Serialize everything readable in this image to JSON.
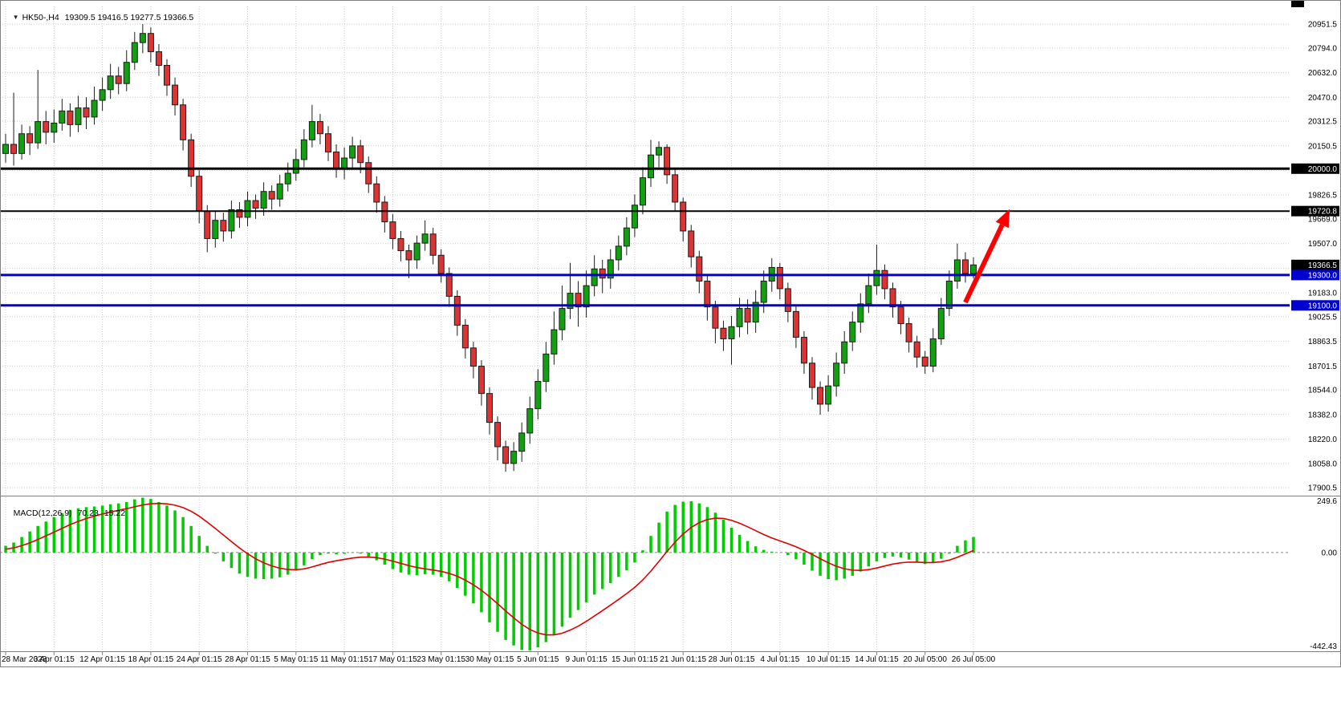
{
  "header": {
    "marker_icon": "▼",
    "symbol_label": "HK50-,H4",
    "ohlc": "19309.5 19416.5 19277.5 19366.5"
  },
  "indicator": {
    "name": "MACD(12,26,9)",
    "main_value": "70.23",
    "signal_value": "15.22"
  },
  "colors": {
    "background": "#ffffff",
    "grid": "#c9c9c9",
    "bull": "#10a010",
    "bear": "#dd3333",
    "candle_outline": "#1c1c1c",
    "macd_histogram": "#00cc00",
    "macd_signal": "#e00000",
    "line_black": "#000000",
    "line_blue": "#0000d0",
    "arrow": "#ff0000",
    "text": "#000000",
    "tag_text": "#ffffff",
    "separator": "#808080"
  },
  "chart_data": {
    "type": "candlestick",
    "symbol": "HK50-",
    "timeframe": "H4",
    "title": "HK50-,H4",
    "current_bar": {
      "open": 19309.5,
      "high": 19416.5,
      "low": 19277.5,
      "close": 19366.5
    },
    "scale": {
      "price_min": 17853,
      "price_max": 21068
    },
    "grid_prices": [
      20951.5,
      20794.0,
      20632.0,
      20470.0,
      20312.5,
      20150.5,
      19988.5,
      19826.5,
      19669.0,
      19507.0,
      19345.0,
      19183.0,
      19025.5,
      18863.5,
      18701.5,
      18544.0,
      18382.0,
      18220.0,
      18058.0,
      17900.5
    ],
    "price_axis_labels": [
      20951.5,
      20794.0,
      20632.0,
      20470.0,
      20312.5,
      20150.5,
      19826.5,
      19669.0,
      19507.0,
      19183.0,
      19025.5,
      18863.5,
      18701.5,
      18544.0,
      18382.0,
      18220.0,
      18058.0,
      17900.5
    ],
    "labels_every": 6,
    "time_labels": [
      "28 Mar 2023",
      "3 Apr 01:15",
      "12 Apr 01:15",
      "18 Apr 01:15",
      "24 Apr 01:15",
      "28 Apr 01:15",
      "5 May 01:15",
      "11 May 01:15",
      "17 May 01:15",
      "23 May 01:15",
      "30 May 01:15",
      "5 Jun 01:15",
      "9 Jun 01:15",
      "15 Jun 01:15",
      "21 Jun 01:15",
      "28 Jun 01:15",
      "4 Jul 01:15",
      "10 Jul 01:15",
      "14 Jul 01:15",
      "20 Jul 05:00",
      "26 Jul 05:00"
    ],
    "hlines": [
      {
        "price": 20000.0,
        "color": "#000000",
        "width": 3,
        "name": "resistance-line-20000"
      },
      {
        "price": 19720.8,
        "color": "#000000",
        "width": 2,
        "name": "resistance-line-19720"
      },
      {
        "price": 19300.0,
        "color": "#0000d0",
        "width": 3,
        "name": "support-line-19300"
      },
      {
        "price": 19100.0,
        "color": "#0000d0",
        "width": 3,
        "name": "support-line-19100"
      }
    ],
    "price_tags": [
      {
        "price": 20000.0,
        "text": "20000.0",
        "bg": "#000000"
      },
      {
        "price": 19720.8,
        "text": "19720.8",
        "bg": "#000000"
      },
      {
        "price": 19366.5,
        "text": "19366.5",
        "bg": "#000000"
      },
      {
        "price": 19300.0,
        "text": "19300.0",
        "bg": "#0000d0"
      },
      {
        "price": 19100.0,
        "text": "19100.0",
        "bg": "#0000d0"
      }
    ],
    "arrow": {
      "from_bar": 119,
      "from_price": 19120,
      "to_bar": 124.5,
      "to_price": 19735,
      "color": "#ff0000",
      "width": 6
    },
    "candles": [
      [
        20100,
        20230,
        20040,
        20160
      ],
      [
        20160,
        20500,
        20020,
        20100
      ],
      [
        20100,
        20290,
        20060,
        20230
      ],
      [
        20230,
        20280,
        20090,
        20170
      ],
      [
        20170,
        20650,
        20130,
        20310
      ],
      [
        20310,
        20380,
        20160,
        20240
      ],
      [
        20240,
        20390,
        20170,
        20300
      ],
      [
        20300,
        20460,
        20250,
        20380
      ],
      [
        20380,
        20430,
        20210,
        20290
      ],
      [
        20290,
        20480,
        20240,
        20400
      ],
      [
        20400,
        20470,
        20260,
        20340
      ],
      [
        20340,
        20540,
        20290,
        20450
      ],
      [
        20450,
        20600,
        20380,
        20520
      ],
      [
        20520,
        20690,
        20460,
        20610
      ],
      [
        20610,
        20670,
        20490,
        20560
      ],
      [
        20560,
        20780,
        20510,
        20700
      ],
      [
        20700,
        20900,
        20650,
        20830
      ],
      [
        20830,
        20951.5,
        20760,
        20890
      ],
      [
        20890,
        20930,
        20700,
        20770
      ],
      [
        20770,
        20820,
        20610,
        20680
      ],
      [
        20680,
        20720,
        20480,
        20550
      ],
      [
        20550,
        20600,
        20350,
        20420
      ],
      [
        20420,
        20460,
        20120,
        20190
      ],
      [
        20190,
        20230,
        19880,
        19950
      ],
      [
        19950,
        19990,
        19640,
        19720
      ],
      [
        19720,
        19760,
        19450,
        19540
      ],
      [
        19540,
        19720,
        19480,
        19660
      ],
      [
        19660,
        19710,
        19520,
        19590
      ],
      [
        19590,
        19790,
        19540,
        19730
      ],
      [
        19730,
        19780,
        19610,
        19680
      ],
      [
        19680,
        19850,
        19620,
        19790
      ],
      [
        19790,
        19830,
        19670,
        19740
      ],
      [
        19740,
        19910,
        19690,
        19850
      ],
      [
        19850,
        19890,
        19730,
        19800
      ],
      [
        19800,
        19960,
        19750,
        19900
      ],
      [
        19900,
        20040,
        19850,
        19970
      ],
      [
        19970,
        20130,
        19920,
        20060
      ],
      [
        20060,
        20260,
        20010,
        20190
      ],
      [
        20190,
        20420,
        20140,
        20310
      ],
      [
        20310,
        20360,
        20160,
        20230
      ],
      [
        20230,
        20280,
        20050,
        20110
      ],
      [
        20110,
        20160,
        19940,
        20000
      ],
      [
        20000,
        20140,
        19930,
        20070
      ],
      [
        20070,
        20210,
        20000,
        20150
      ],
      [
        20150,
        20190,
        19970,
        20040
      ],
      [
        20040,
        20080,
        19840,
        19900
      ],
      [
        19900,
        19950,
        19710,
        19780
      ],
      [
        19780,
        19820,
        19580,
        19650
      ],
      [
        19650,
        19700,
        19470,
        19540
      ],
      [
        19540,
        19590,
        19390,
        19460
      ],
      [
        19460,
        19500,
        19280,
        19400
      ],
      [
        19400,
        19560,
        19340,
        19510
      ],
      [
        19510,
        19660,
        19460,
        19570
      ],
      [
        19570,
        19610,
        19370,
        19430
      ],
      [
        19430,
        19470,
        19250,
        19310
      ],
      [
        19310,
        19350,
        19090,
        19160
      ],
      [
        19160,
        19200,
        18900,
        18970
      ],
      [
        18970,
        19010,
        18750,
        18820
      ],
      [
        18820,
        18860,
        18620,
        18700
      ],
      [
        18700,
        18740,
        18440,
        18520
      ],
      [
        18520,
        18560,
        18250,
        18330
      ],
      [
        18330,
        18370,
        18080,
        18170
      ],
      [
        18170,
        18210,
        18005,
        18060
      ],
      [
        18060,
        18200,
        18010,
        18140
      ],
      [
        18140,
        18330,
        18070,
        18260
      ],
      [
        18260,
        18500,
        18190,
        18420
      ],
      [
        18420,
        18680,
        18350,
        18600
      ],
      [
        18600,
        18860,
        18530,
        18780
      ],
      [
        18780,
        19060,
        18710,
        18940
      ],
      [
        18940,
        19230,
        18870,
        19080
      ],
      [
        19080,
        19380,
        19010,
        19180
      ],
      [
        19180,
        19260,
        18960,
        19090
      ],
      [
        19090,
        19330,
        19020,
        19230
      ],
      [
        19230,
        19430,
        19160,
        19340
      ],
      [
        19340,
        19400,
        19180,
        19280
      ],
      [
        19280,
        19470,
        19210,
        19400
      ],
      [
        19400,
        19560,
        19330,
        19490
      ],
      [
        19490,
        19680,
        19430,
        19610
      ],
      [
        19610,
        19830,
        19550,
        19760
      ],
      [
        19760,
        20010,
        19700,
        19940
      ],
      [
        19940,
        20190,
        19880,
        20090
      ],
      [
        20090,
        20180,
        20010,
        20140
      ],
      [
        20140,
        20160,
        19900,
        19960
      ],
      [
        19960,
        20000,
        19720,
        19780
      ],
      [
        19780,
        19810,
        19520,
        19590
      ],
      [
        19590,
        19630,
        19350,
        19420
      ],
      [
        19420,
        19460,
        19180,
        19260
      ],
      [
        19260,
        19300,
        19000,
        19090
      ],
      [
        19090,
        19130,
        18850,
        18950
      ],
      [
        18950,
        19000,
        18800,
        18880
      ],
      [
        18880,
        19030,
        18710,
        18960
      ],
      [
        18960,
        19150,
        18890,
        19080
      ],
      [
        19080,
        19140,
        18910,
        18990
      ],
      [
        18990,
        19200,
        18920,
        19120
      ],
      [
        19120,
        19330,
        19050,
        19260
      ],
      [
        19260,
        19410,
        19190,
        19350
      ],
      [
        19350,
        19380,
        19140,
        19210
      ],
      [
        19210,
        19250,
        18990,
        19060
      ],
      [
        19060,
        19100,
        18820,
        18890
      ],
      [
        18890,
        18930,
        18650,
        18720
      ],
      [
        18720,
        18760,
        18480,
        18560
      ],
      [
        18560,
        18600,
        18380,
        18450
      ],
      [
        18450,
        18640,
        18400,
        18570
      ],
      [
        18570,
        18790,
        18500,
        18720
      ],
      [
        18720,
        18930,
        18650,
        18860
      ],
      [
        18860,
        19060,
        18800,
        18990
      ],
      [
        18990,
        19180,
        18920,
        19110
      ],
      [
        19110,
        19310,
        19050,
        19230
      ],
      [
        19230,
        19500,
        19170,
        19330
      ],
      [
        19330,
        19370,
        19140,
        19210
      ],
      [
        19210,
        19250,
        19020,
        19090
      ],
      [
        19090,
        19130,
        18910,
        18980
      ],
      [
        18980,
        19020,
        18790,
        18860
      ],
      [
        18860,
        18900,
        18690,
        18760
      ],
      [
        18760,
        18800,
        18650,
        18700
      ],
      [
        18700,
        18950,
        18660,
        18880
      ],
      [
        18880,
        19150,
        18840,
        19080
      ],
      [
        19080,
        19330,
        19030,
        19260
      ],
      [
        19260,
        19507,
        19210,
        19400
      ],
      [
        19400,
        19450,
        19250,
        19310
      ],
      [
        19309.5,
        19416.5,
        19277.5,
        19366.5
      ]
    ],
    "macd": {
      "label": "MACD(12,26,9)",
      "params": [
        12,
        26,
        9
      ],
      "main_value": 70.23,
      "signal_value": 15.22,
      "signal_period": 9,
      "scale_max": 249.6,
      "scale_min": -442.43,
      "label_max": "249.6",
      "label_zero": "0.00",
      "label_min": "-442.43",
      "values": [
        30,
        45,
        70,
        95,
        120,
        140,
        160,
        178,
        192,
        200,
        205,
        208,
        212,
        218,
        222,
        228,
        240,
        248,
        242,
        228,
        212,
        190,
        160,
        120,
        75,
        30,
        -5,
        -40,
        -70,
        -95,
        -110,
        -118,
        -120,
        -118,
        -112,
        -100,
        -82,
        -58,
        -30,
        -12,
        -5,
        -8,
        -6,
        -2,
        -5,
        -18,
        -35,
        -55,
        -75,
        -90,
        -100,
        -102,
        -98,
        -100,
        -110,
        -130,
        -160,
        -195,
        -230,
        -270,
        -315,
        -358,
        -395,
        -420,
        -440,
        -442,
        -428,
        -405,
        -372,
        -335,
        -295,
        -260,
        -225,
        -190,
        -165,
        -138,
        -110,
        -80,
        -45,
        10,
        75,
        135,
        185,
        215,
        230,
        232,
        222,
        205,
        180,
        148,
        112,
        80,
        52,
        28,
        12,
        4,
        0,
        -12,
        -30,
        -55,
        -82,
        -105,
        -120,
        -125,
        -118,
        -105,
        -86,
        -63,
        -40,
        -25,
        -18,
        -22,
        -32,
        -45,
        -52,
        -45,
        -28,
        -5,
        30,
        55,
        70.23
      ]
    }
  }
}
